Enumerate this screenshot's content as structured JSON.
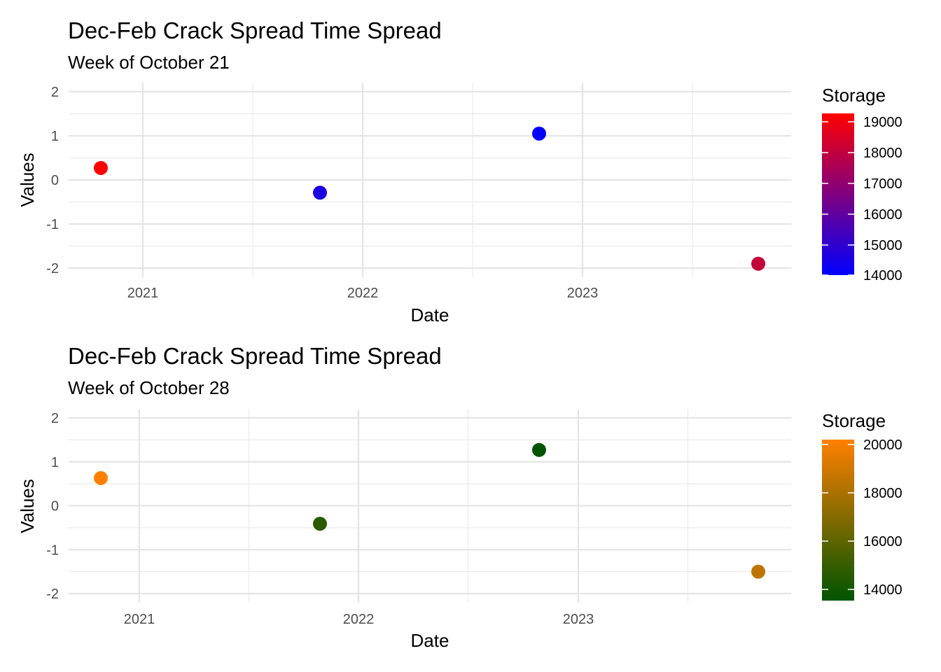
{
  "chart_data": [
    {
      "type": "scatter",
      "title": "Dec-Feb Crack Spread Time Spread",
      "subtitle": "Week of October 21",
      "xlabel": "Date",
      "ylabel": "Values",
      "x_ticks": [
        "2021",
        "2022",
        "2023"
      ],
      "y_ticks": [
        "2",
        "1",
        "0",
        "-1",
        "-2"
      ],
      "ylim": [
        -2.2,
        2.2
      ],
      "grid": true,
      "legend": {
        "title": "Storage",
        "position": "right",
        "type": "colorbar",
        "low_color": "#0000ff",
        "high_color": "#ff0000",
        "range": [
          14000,
          19200
        ],
        "ticks": [
          "19000",
          "18000",
          "17000",
          "16000",
          "15000",
          "14000"
        ]
      },
      "points": [
        {
          "date": "2020-10-21",
          "value": 0.27,
          "storage": 19200
        },
        {
          "date": "2021-10-21",
          "value": -0.29,
          "storage": 14600
        },
        {
          "date": "2022-10-21",
          "value": 1.05,
          "storage": 14000
        },
        {
          "date": "2023-10-21",
          "value": -1.9,
          "storage": 18000
        }
      ]
    },
    {
      "type": "scatter",
      "title": "Dec-Feb Crack Spread Time Spread",
      "subtitle": "Week of October 28",
      "xlabel": "Date",
      "ylabel": "Values",
      "x_ticks": [
        "2021",
        "2022",
        "2023"
      ],
      "y_ticks": [
        "2",
        "1",
        "0",
        "-1",
        "-2"
      ],
      "ylim": [
        -2.2,
        2.2
      ],
      "grid": true,
      "legend": {
        "title": "Storage",
        "position": "right",
        "type": "colorbar",
        "low_color": "#005400",
        "high_color": "#ff8000",
        "range": [
          13500,
          20200
        ],
        "ticks": [
          "20000",
          "18000",
          "16000",
          "14000"
        ]
      },
      "points": [
        {
          "date": "2020-10-28",
          "value": 0.63,
          "storage": 20200
        },
        {
          "date": "2021-10-28",
          "value": -0.41,
          "storage": 14600
        },
        {
          "date": "2022-10-28",
          "value": 1.27,
          "storage": 13500
        },
        {
          "date": "2023-10-28",
          "value": -1.5,
          "storage": 18500
        }
      ]
    }
  ]
}
